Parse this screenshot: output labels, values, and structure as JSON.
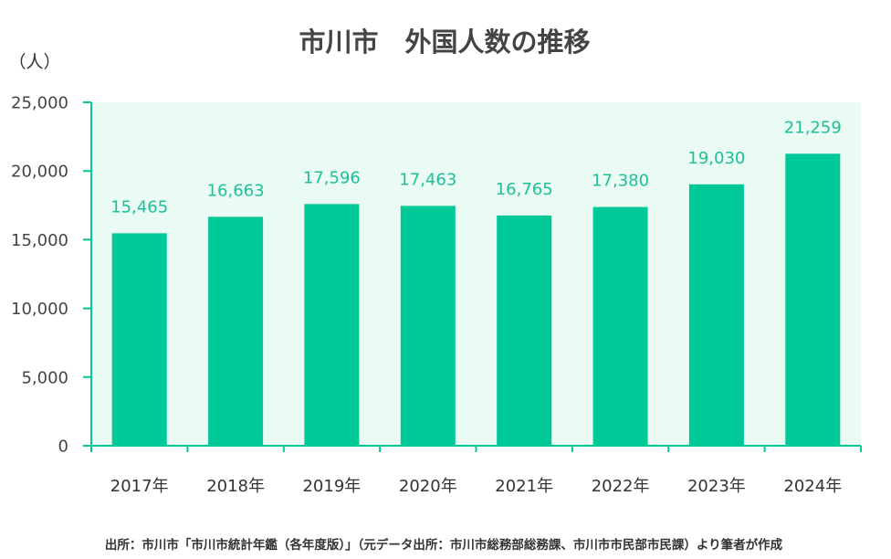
{
  "source": "出所：市川市「市川市統計年鑑（各年度版）」（元データ出所：市川市総務部総務課、市川市市民部市民課）より筆者が作成",
  "chart_data": {
    "type": "bar",
    "title": "市川市　外国人数の推移",
    "xlabel": "",
    "ylabel": "（人）",
    "categories": [
      "2017年",
      "2018年",
      "2019年",
      "2020年",
      "2021年",
      "2022年",
      "2023年",
      "2024年"
    ],
    "values": [
      15465,
      16663,
      17596,
      17463,
      16765,
      17380,
      19030,
      21259
    ],
    "value_labels": [
      "15,465",
      "16,663",
      "17,596",
      "17,463",
      "16,765",
      "17,380",
      "19,030",
      "21,259"
    ],
    "ylim": [
      0,
      25000
    ],
    "yticks": [
      0,
      5000,
      10000,
      15000,
      20000,
      25000
    ],
    "ytick_labels": [
      "0",
      "5,000",
      "10,000",
      "15,000",
      "20,000",
      "25,000"
    ],
    "grid": false,
    "legend": "none",
    "colors": {
      "bar": "#00c896",
      "value_label": "#1fbf9a",
      "axis": "#00c896",
      "plot_background": "#e9fbf2"
    }
  }
}
